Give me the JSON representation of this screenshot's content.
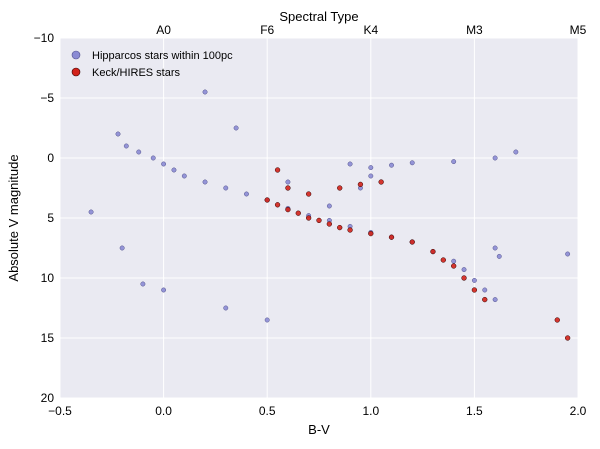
{
  "chart_data": {
    "type": "scatter",
    "title": "",
    "top_axis_label": "Spectral Type",
    "top_ticks": [
      {
        "label": "A0",
        "x": 0.0
      },
      {
        "label": "F6",
        "x": 0.5
      },
      {
        "label": "K4",
        "x": 1.0
      },
      {
        "label": "M3",
        "x": 1.5
      },
      {
        "label": "M5",
        "x": 2.0
      }
    ],
    "xlabel": "B-V",
    "ylabel": "Absolute V magnitude",
    "xlim": [
      -0.5,
      2.0
    ],
    "ylim": [
      20,
      -10
    ],
    "y_inverted": true,
    "xticks": [
      "−0.5",
      "0.0",
      "0.5",
      "1.0",
      "1.5",
      "2.0"
    ],
    "yticks": [
      "−10",
      "−5",
      "0",
      "5",
      "10",
      "15",
      "20"
    ],
    "grid": true,
    "legend_position": "top-left",
    "series": [
      {
        "name": "Hipparcos stars within 100pc",
        "color": "#8b8bd4",
        "points": [
          [
            -0.22,
            -2.0
          ],
          [
            -0.18,
            -1.0
          ],
          [
            -0.12,
            -0.5
          ],
          [
            -0.05,
            0.0
          ],
          [
            0.0,
            0.5
          ],
          [
            0.05,
            1.0
          ],
          [
            0.1,
            1.5
          ],
          [
            0.2,
            2.0
          ],
          [
            0.3,
            2.5
          ],
          [
            0.4,
            3.0
          ],
          [
            0.5,
            3.5
          ],
          [
            0.6,
            4.2
          ],
          [
            0.7,
            4.8
          ],
          [
            0.8,
            5.2
          ],
          [
            0.9,
            5.7
          ],
          [
            1.0,
            6.2
          ],
          [
            1.1,
            6.6
          ],
          [
            1.2,
            7.0
          ],
          [
            1.3,
            7.8
          ],
          [
            1.4,
            8.6
          ],
          [
            1.45,
            9.3
          ],
          [
            1.5,
            10.2
          ],
          [
            1.55,
            11.0
          ],
          [
            1.6,
            11.8
          ],
          [
            0.9,
            0.5
          ],
          [
            1.0,
            0.8
          ],
          [
            1.1,
            0.6
          ],
          [
            1.2,
            0.4
          ],
          [
            1.4,
            0.3
          ],
          [
            1.6,
            0.0
          ],
          [
            1.7,
            -0.5
          ],
          [
            0.6,
            2.0
          ],
          [
            0.8,
            4.0
          ],
          [
            0.95,
            2.5
          ],
          [
            1.0,
            1.5
          ],
          [
            1.6,
            7.5
          ],
          [
            1.62,
            8.2
          ],
          [
            1.95,
            8.0
          ],
          [
            -0.35,
            4.5
          ],
          [
            -0.2,
            7.5
          ],
          [
            -0.1,
            10.5
          ],
          [
            0.0,
            11.0
          ],
          [
            0.3,
            12.5
          ],
          [
            0.5,
            13.5
          ],
          [
            0.2,
            -5.5
          ],
          [
            0.35,
            -2.5
          ]
        ]
      },
      {
        "name": "Keck/HIRES stars",
        "color": "#d2221a",
        "points": [
          [
            0.5,
            3.5
          ],
          [
            0.55,
            3.9
          ],
          [
            0.6,
            4.3
          ],
          [
            0.65,
            4.6
          ],
          [
            0.7,
            5.0
          ],
          [
            0.75,
            5.2
          ],
          [
            0.8,
            5.5
          ],
          [
            0.85,
            5.8
          ],
          [
            0.9,
            6.0
          ],
          [
            1.0,
            6.3
          ],
          [
            1.1,
            6.6
          ],
          [
            1.2,
            7.0
          ],
          [
            1.3,
            7.8
          ],
          [
            1.35,
            8.5
          ],
          [
            1.4,
            9.0
          ],
          [
            1.45,
            10.0
          ],
          [
            1.5,
            11.0
          ],
          [
            1.55,
            11.8
          ],
          [
            0.85,
            2.5
          ],
          [
            0.95,
            2.2
          ],
          [
            1.05,
            2.0
          ],
          [
            0.55,
            1.0
          ],
          [
            0.6,
            2.5
          ],
          [
            0.7,
            3.0
          ],
          [
            1.9,
            13.5
          ],
          [
            1.95,
            15.0
          ]
        ]
      }
    ]
  }
}
